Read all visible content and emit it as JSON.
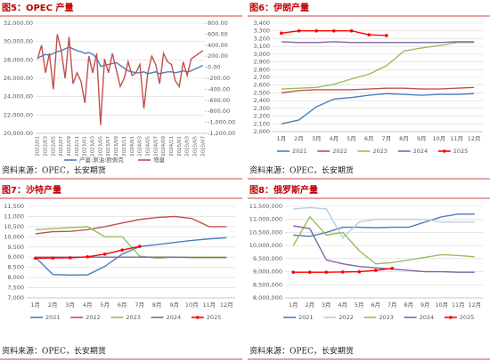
{
  "chart_data": [
    {
      "type": "line",
      "title": "图5：OPEC 产量",
      "source": "资料来源：OPEC，长安期货",
      "categories": [
        "2022/01",
        null,
        "2022/03",
        null,
        "2022/05",
        null,
        "2022/07",
        null,
        "2022/09",
        null,
        "2022/11",
        null,
        "2023/01",
        null,
        "2023/03",
        null,
        "2023/05",
        null,
        "2023/07",
        null,
        "2023/09",
        null,
        "2023/11",
        null,
        "2024/01",
        null,
        "2024/03",
        null,
        "2024/05",
        null,
        "2024/07",
        null,
        "2024/09",
        null,
        "2024/11",
        null,
        "2025/01",
        null,
        "2025/03",
        null,
        "2025/05",
        null,
        "2025/07"
      ],
      "series": [
        {
          "name": "产量:原油:欧佩克",
          "color": "#4a7ebb",
          "values": [
            28200,
            28400,
            28600,
            28500,
            28700,
            28900,
            29000,
            29200,
            29400,
            29200,
            29000,
            28900,
            28700,
            28800,
            28600,
            28200,
            27300,
            27400,
            27500,
            27600,
            27700,
            27400,
            27100,
            26800,
            26700,
            26600,
            26600,
            26700,
            26500,
            26600,
            26700,
            26500,
            26600,
            26700,
            26700,
            26600,
            26700,
            26800,
            26700,
            26800,
            27000,
            27200,
            27400
          ]
        },
        {
          "name": "增量",
          "color": "#c0504d",
          "axis": "y2",
          "values": [
            150,
            400,
            -100,
            250,
            -400,
            600,
            300,
            -200,
            550,
            -300,
            -100,
            -250,
            -650,
            200,
            -100,
            250,
            -1050,
            150,
            -100,
            250,
            -50,
            -350,
            -200,
            100,
            -150,
            -100,
            50,
            -750,
            -100,
            200,
            50,
            -300,
            250,
            100,
            50,
            -250,
            -350,
            100,
            -150,
            150,
            200,
            250,
            300
          ]
        }
      ],
      "ylim": [
        20000,
        32000
      ],
      "yticks": [
        {
          "value": 20000,
          "label": "20,000.00"
        },
        {
          "value": 22000,
          "label": "22,000.00"
        },
        {
          "value": 24000,
          "label": "24,000.00"
        },
        {
          "value": 26000,
          "label": "26,000.00"
        },
        {
          "value": 28000,
          "label": "28,000.00"
        },
        {
          "value": 30000,
          "label": "30,000.00"
        },
        {
          "value": 32000,
          "label": "32,000.00"
        }
      ],
      "y2lim": [
        -1200,
        800
      ],
      "y2ticks": [
        {
          "value": -1200,
          "label": "-1,200.00"
        },
        {
          "value": -1000,
          "label": "-1,000.00"
        },
        {
          "value": -800,
          "label": "-800.00"
        },
        {
          "value": -600,
          "label": "-600.00"
        },
        {
          "value": -400,
          "label": "-400.00"
        },
        {
          "value": -200,
          "label": "-200.00"
        },
        {
          "value": 0,
          "label": "0.00"
        },
        {
          "value": 200,
          "label": "200.00"
        },
        {
          "value": 400,
          "label": "400.00"
        },
        {
          "value": 600,
          "label": "600.00"
        },
        {
          "value": 800,
          "label": "800.00"
        }
      ],
      "grid": true,
      "legend": "bottom"
    },
    {
      "type": "line",
      "title": "图6：伊朗产量",
      "source": "资料来源：OPEC，长安期货",
      "categories": [
        "1月",
        "2月",
        "3月",
        "4月",
        "5月",
        "6月",
        "7月",
        "8月",
        "9月",
        "10月",
        "11月",
        "12月"
      ],
      "series": [
        {
          "name": "2021",
          "color": "#4a7ebb",
          "values": [
            2100,
            2150,
            2320,
            2420,
            2440,
            2470,
            2490,
            2480,
            2470,
            2480,
            2480,
            2490
          ]
        },
        {
          "name": "2022",
          "color": "#c0504d",
          "values": [
            2500,
            2530,
            2540,
            2540,
            2540,
            2550,
            2560,
            2560,
            2550,
            2550,
            2560,
            2570
          ]
        },
        {
          "name": "2023",
          "color": "#9bbb59",
          "values": [
            2550,
            2560,
            2570,
            2610,
            2680,
            2740,
            2850,
            3040,
            3080,
            3110,
            3150,
            3150
          ]
        },
        {
          "name": "2024",
          "color": "#8064a2",
          "values": [
            3160,
            3150,
            3150,
            3160,
            3150,
            3150,
            3150,
            3150,
            3150,
            3150,
            3160,
            3160
          ]
        },
        {
          "name": "2025",
          "color": "#ff0000",
          "marker": true,
          "values": [
            3270,
            3300,
            3300,
            3300,
            3300,
            3250,
            3240,
            null,
            null,
            null,
            null,
            null
          ]
        }
      ],
      "ylim": [
        2000,
        3400
      ],
      "yticks": [
        {
          "value": 2000,
          "label": "2,000"
        },
        {
          "value": 2100,
          "label": "2,100"
        },
        {
          "value": 2200,
          "label": "2,200"
        },
        {
          "value": 2300,
          "label": "2,300"
        },
        {
          "value": 2400,
          "label": "2,400"
        },
        {
          "value": 2500,
          "label": "2,500"
        },
        {
          "value": 2600,
          "label": "2,600"
        },
        {
          "value": 2700,
          "label": "2,700"
        },
        {
          "value": 2800,
          "label": "2,800"
        },
        {
          "value": 2900,
          "label": "2,900"
        },
        {
          "value": 3000,
          "label": "3,000"
        },
        {
          "value": 3100,
          "label": "3,100"
        },
        {
          "value": 3200,
          "label": "3,200"
        },
        {
          "value": 3300,
          "label": "3,300"
        },
        {
          "value": 3400,
          "label": "3,400"
        }
      ],
      "grid": true,
      "legend": "bottom"
    },
    {
      "type": "line",
      "title": "图7：沙特产量",
      "source": "资料来源：OPEC，长安期货",
      "categories": [
        "1月",
        "2月",
        "3月",
        "4月",
        "5月",
        "6月",
        "7月",
        "8月",
        "9月",
        "10月",
        "11月",
        "12月"
      ],
      "series": [
        {
          "name": "2021",
          "color": "#4a7ebb",
          "values": [
            9000,
            8150,
            8120,
            8130,
            8550,
            9150,
            9520,
            9620,
            9720,
            9820,
            9900,
            9950
          ]
        },
        {
          "name": "2022",
          "color": "#c0504d",
          "values": [
            10150,
            10250,
            10270,
            10350,
            10500,
            10680,
            10850,
            10950,
            11000,
            10900,
            10500,
            10500
          ]
        },
        {
          "name": "2023",
          "color": "#9bbb59",
          "values": [
            10350,
            10400,
            10450,
            10500,
            10000,
            10000,
            9050,
            8950,
            9000,
            9000,
            9000,
            9000
          ]
        },
        {
          "name": "2024",
          "color": "#8064a2",
          "values": [
            9000,
            9000,
            9000,
            9000,
            9000,
            9000,
            9000,
            9000,
            9000,
            8980,
            8980,
            8980
          ]
        },
        {
          "name": "2025",
          "color": "#ff0000",
          "marker": true,
          "values": [
            8950,
            8960,
            8970,
            9020,
            9150,
            9350,
            9530,
            null,
            null,
            null,
            null,
            null
          ]
        }
      ],
      "ylim": [
        7000,
        11500
      ],
      "yticks": [
        {
          "value": 7000,
          "label": "7,000"
        },
        {
          "value": 7500,
          "label": "7,500"
        },
        {
          "value": 8000,
          "label": "8,000"
        },
        {
          "value": 8500,
          "label": "8,500"
        },
        {
          "value": 9000,
          "label": "9,000"
        },
        {
          "value": 9500,
          "label": "9,500"
        },
        {
          "value": 10000,
          "label": "10,000"
        },
        {
          "value": 10500,
          "label": "10,500"
        },
        {
          "value": 11000,
          "label": "11,000"
        },
        {
          "value": 11500,
          "label": "11,500"
        }
      ],
      "grid": true,
      "legend": "bottom"
    },
    {
      "type": "line",
      "title": "图8：俄罗斯产量",
      "source": "资料来源：OPEC，长安期货",
      "categories": [
        "1月",
        "2月",
        "3月",
        "4月",
        "5月",
        "6月",
        "7月",
        "8月",
        "9月",
        "10月",
        "11月",
        "12月"
      ],
      "series": [
        {
          "name": "2021",
          "color": "#4a7ebb",
          "values": [
            10400000,
            10350000,
            10500000,
            10700000,
            10700000,
            10680000,
            10700000,
            10700000,
            10900000,
            11100000,
            11200000,
            11200000
          ]
        },
        {
          "name": "2022",
          "color": "#b7cde8",
          "values": [
            11400000,
            11450000,
            11400000,
            10300000,
            10900000,
            11000000,
            11000000,
            11000000,
            11000000,
            10900000,
            10900000,
            10900000
          ]
        },
        {
          "name": "2023",
          "color": "#9bbb59",
          "values": [
            10000000,
            11100000,
            10400000,
            10500000,
            9800000,
            9300000,
            9350000,
            9450000,
            9550000,
            9650000,
            9620000,
            9570000
          ]
        },
        {
          "name": "2024",
          "color": "#8064a2",
          "values": [
            10750000,
            10650000,
            9450000,
            9300000,
            9200000,
            9150000,
            9100000,
            9050000,
            9000000,
            9000000,
            8980000,
            8980000
          ]
        },
        {
          "name": "2025",
          "color": "#ff0000",
          "marker": true,
          "values": [
            8980000,
            8980000,
            8980000,
            8990000,
            9000000,
            9050000,
            9130000,
            null,
            null,
            null,
            null,
            null
          ]
        }
      ],
      "ylim": [
        8000000,
        11500000
      ],
      "yticks": [
        {
          "value": 8000000,
          "label": "8,000,000"
        },
        {
          "value": 8500000,
          "label": "8,500,000"
        },
        {
          "value": 9000000,
          "label": "9,000,000"
        },
        {
          "value": 9500000,
          "label": "9,500,000"
        },
        {
          "value": 10000000,
          "label": "10,000,000"
        },
        {
          "value": 10500000,
          "label": "10,500,000"
        },
        {
          "value": 11000000,
          "label": "11,000,000"
        },
        {
          "value": 11500000,
          "label": "11,500,000"
        }
      ],
      "grid": true,
      "legend": "bottom"
    }
  ]
}
